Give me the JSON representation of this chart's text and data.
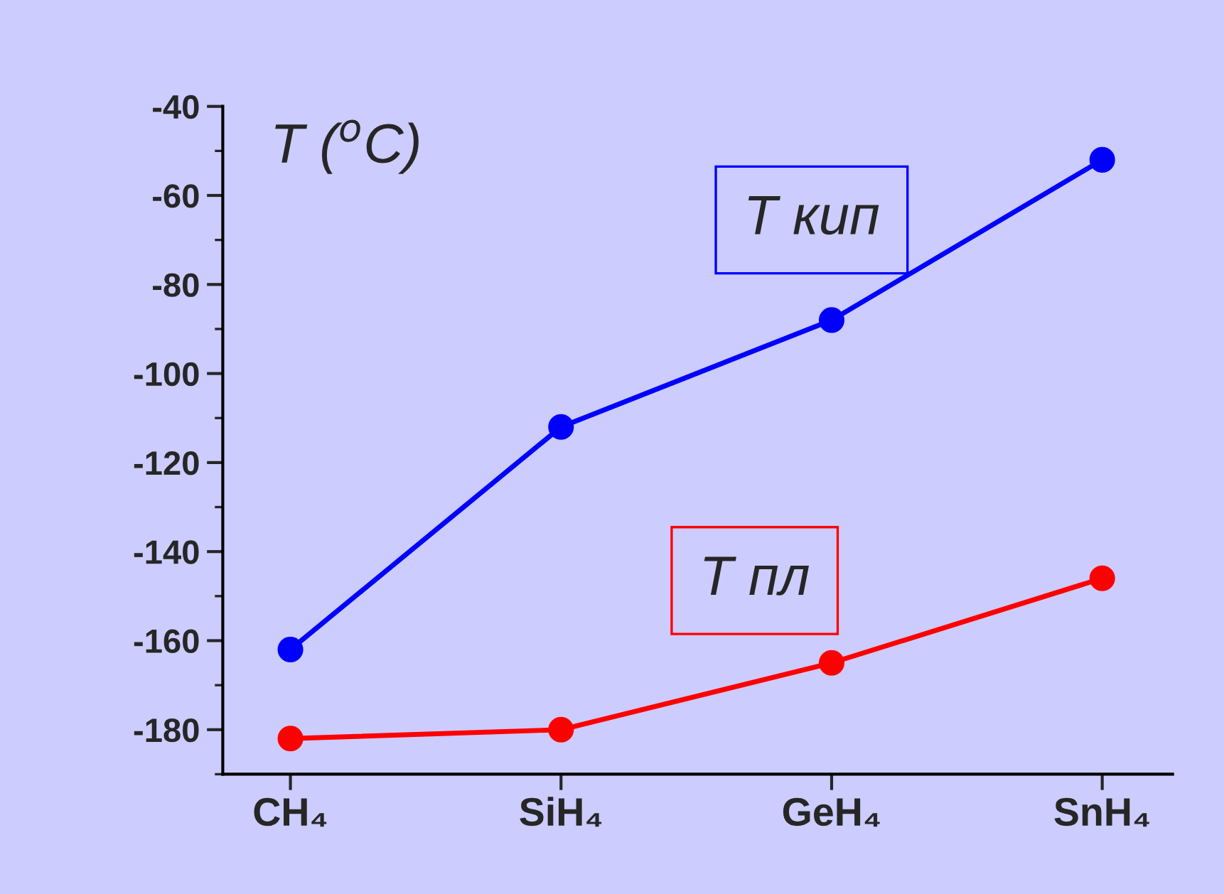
{
  "chart_data": {
    "type": "line",
    "ylabel": "T ($^{o}$C)",
    "categories": [
      "CH₄",
      "SiH₄",
      "GeH₄",
      "SnH₄"
    ],
    "series": [
      {
        "name": "T кип",
        "color": "#0000ff",
        "values": [
          -162,
          -112,
          -88,
          -52
        ]
      },
      {
        "name": "T пл",
        "color": "#ff0000",
        "values": [
          -182,
          -180,
          -165,
          -146
        ]
      }
    ],
    "ylim": [
      -190,
      -40
    ],
    "yticks": [
      -40,
      -60,
      -80,
      -100,
      -120,
      -140,
      -160,
      -180
    ],
    "marker": "circle",
    "line_style": "solid",
    "grid": false,
    "legend": false
  }
}
